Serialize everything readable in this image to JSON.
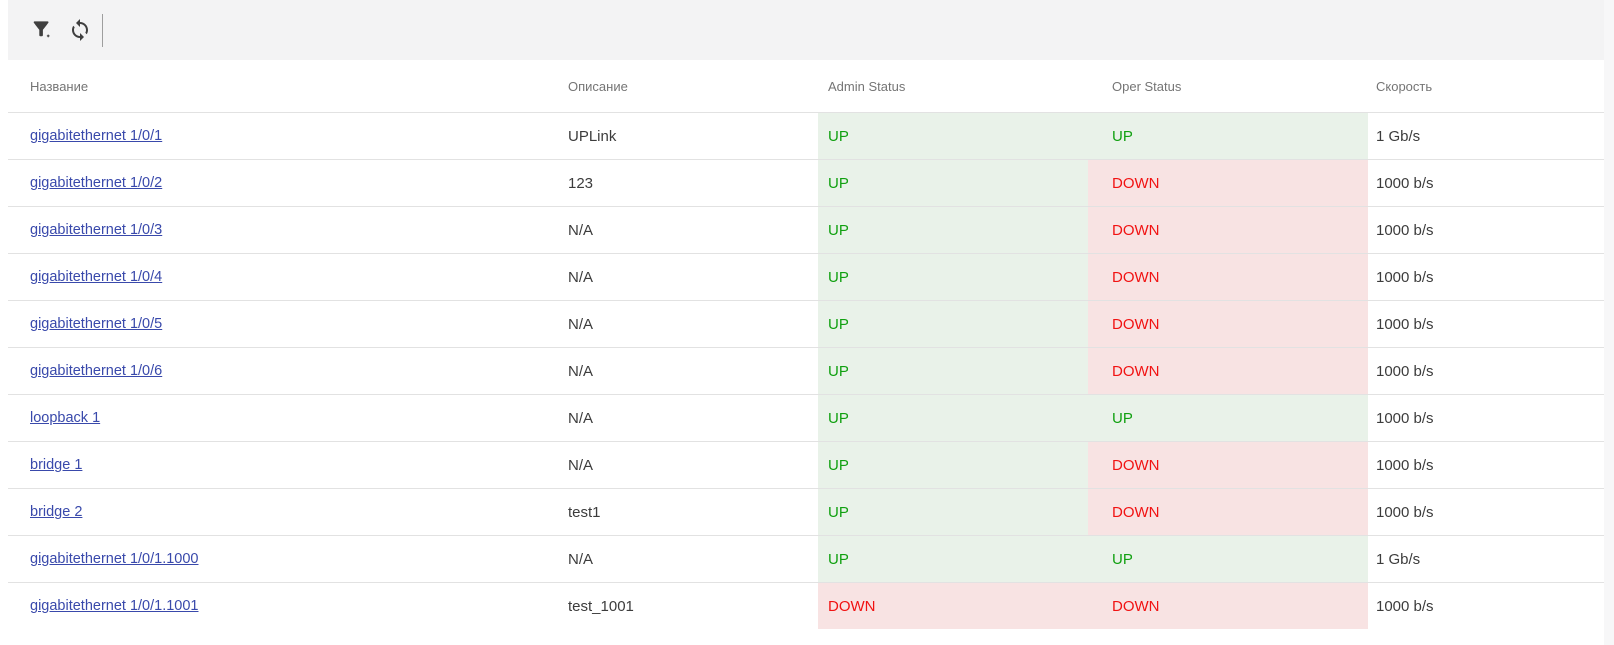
{
  "toolbar": {
    "add_filter_icon": "filter-plus-icon",
    "refresh_icon": "refresh-icon"
  },
  "table": {
    "columns": [
      {
        "key": "name",
        "label": "Название"
      },
      {
        "key": "description",
        "label": "Описание"
      },
      {
        "key": "admin_status",
        "label": "Admin Status"
      },
      {
        "key": "oper_status",
        "label": "Oper Status"
      },
      {
        "key": "speed",
        "label": "Скорость"
      }
    ],
    "rows": [
      {
        "name": "gigabitethernet 1/0/1",
        "description": "UPLink",
        "admin_status": "UP",
        "oper_status": "UP",
        "speed": "1 Gb/s"
      },
      {
        "name": "gigabitethernet 1/0/2",
        "description": "123",
        "admin_status": "UP",
        "oper_status": "DOWN",
        "speed": "1000 b/s"
      },
      {
        "name": "gigabitethernet 1/0/3",
        "description": "N/A",
        "admin_status": "UP",
        "oper_status": "DOWN",
        "speed": "1000 b/s"
      },
      {
        "name": "gigabitethernet 1/0/4",
        "description": "N/A",
        "admin_status": "UP",
        "oper_status": "DOWN",
        "speed": "1000 b/s"
      },
      {
        "name": "gigabitethernet 1/0/5",
        "description": "N/A",
        "admin_status": "UP",
        "oper_status": "DOWN",
        "speed": "1000 b/s"
      },
      {
        "name": "gigabitethernet 1/0/6",
        "description": "N/A",
        "admin_status": "UP",
        "oper_status": "DOWN",
        "speed": "1000 b/s"
      },
      {
        "name": "loopback 1",
        "description": "N/A",
        "admin_status": "UP",
        "oper_status": "UP",
        "speed": "1000 b/s"
      },
      {
        "name": "bridge 1",
        "description": "N/A",
        "admin_status": "UP",
        "oper_status": "DOWN",
        "speed": "1000 b/s"
      },
      {
        "name": "bridge 2",
        "description": "test1",
        "admin_status": "UP",
        "oper_status": "DOWN",
        "speed": "1000 b/s"
      },
      {
        "name": "gigabitethernet 1/0/1.1000",
        "description": "N/A",
        "admin_status": "UP",
        "oper_status": "UP",
        "speed": "1 Gb/s"
      },
      {
        "name": "gigabitethernet 1/0/1.1001",
        "description": "test_1001",
        "admin_status": "DOWN",
        "oper_status": "DOWN",
        "speed": "1000 b/s"
      }
    ]
  },
  "colors": {
    "link_color": "#3949ab",
    "green_text": "#10a010",
    "red_text": "#f11212",
    "green_bg": "#e9f2e9",
    "red_bg": "#f8e3e3",
    "header_text": "#757575",
    "body_text": "#3c3c3c",
    "toolbar_bg": "#f3f3f4",
    "row_border": "#e2e2e2",
    "icon_color": "#3f3f3f"
  }
}
